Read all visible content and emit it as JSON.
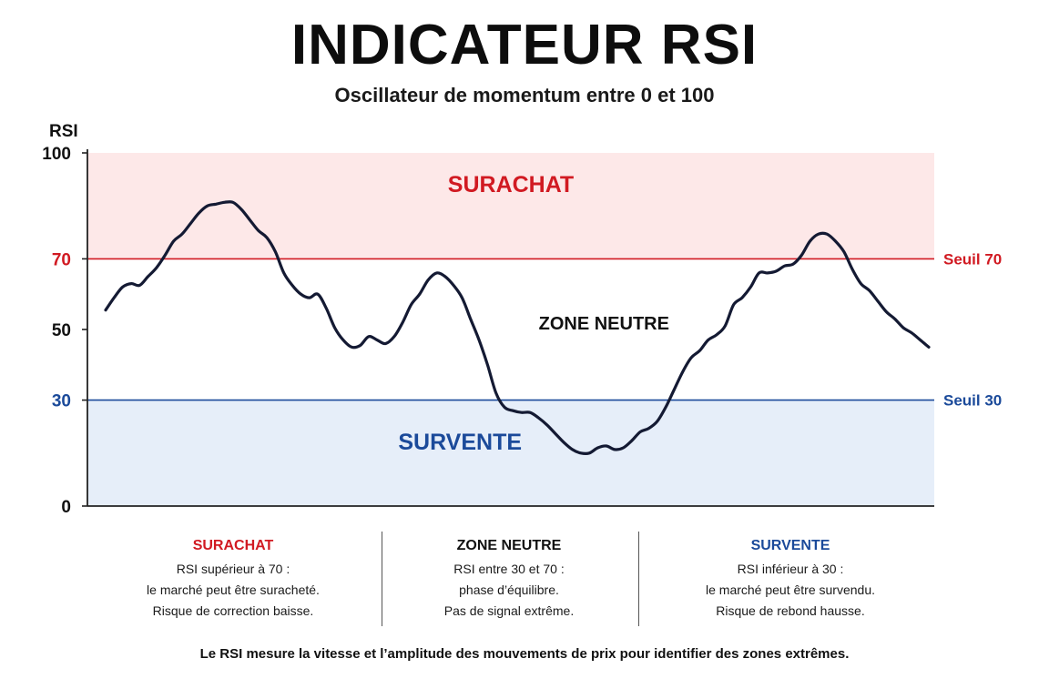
{
  "title": "INDICATEUR RSI",
  "subtitle": "Oscillateur de momentum entre 0 et 100",
  "colors": {
    "overbought": "#d11a22",
    "oversold": "#1b4a9a",
    "overbought_band": "#fde8e8",
    "oversold_band": "#e6eef9",
    "line": "#141a33"
  },
  "chart_data": {
    "type": "line",
    "ylabel": "RSI",
    "ylim": [
      0,
      100
    ],
    "y_ticks": [
      {
        "value": 100,
        "label": "100",
        "color": "#111111"
      },
      {
        "value": 70,
        "label": "70",
        "color": "#d11a22"
      },
      {
        "value": 50,
        "label": "50",
        "color": "#111111"
      },
      {
        "value": 30,
        "label": "30",
        "color": "#1b4a9a"
      },
      {
        "value": 0,
        "label": "0",
        "color": "#111111"
      }
    ],
    "thresholds": [
      {
        "value": 70,
        "label": "Seuil 70",
        "color": "#d11a22"
      },
      {
        "value": 30,
        "label": "Seuil 30",
        "color": "#1b4a9a"
      }
    ],
    "zones": [
      {
        "from": 70,
        "to": 100,
        "label": "SURACHAT",
        "color": "#d11a22",
        "fill": "#fde8e8",
        "label_value": 91,
        "label_x": 0.5
      },
      {
        "from": 30,
        "to": 70,
        "label": "ZONE NEUTRE",
        "color": "#111111",
        "fill": "none",
        "label_value": 52,
        "label_x": 0.61
      },
      {
        "from": 0,
        "to": 30,
        "label": "SURVENTE",
        "color": "#1b4a9a",
        "fill": "#e6eef9",
        "label_value": 18,
        "label_x": 0.44
      }
    ],
    "series": [
      {
        "values": [
          55.5,
          59,
          62,
          63,
          62.5,
          65,
          67.5,
          71,
          75,
          77,
          80,
          83,
          85,
          85.5,
          86,
          86,
          84,
          81,
          78,
          76,
          72,
          66,
          62.5,
          60,
          59,
          60,
          56,
          50.5,
          47,
          45,
          45.5,
          48,
          47,
          46,
          48,
          52,
          57,
          60,
          64,
          66,
          65,
          62.5,
          59,
          53,
          47,
          40,
          32,
          28,
          27,
          26.5,
          26.5,
          25,
          23,
          20.5,
          18,
          16,
          15,
          15,
          16.5,
          17,
          16,
          16.5,
          18.5,
          21,
          22,
          24,
          28,
          33,
          38,
          42,
          44,
          47,
          48.5,
          51,
          57,
          59,
          62,
          66,
          66,
          66.5,
          68,
          68.5,
          71,
          75,
          77,
          77,
          75,
          72,
          67,
          63,
          61,
          58,
          55,
          53,
          50.5,
          49,
          47,
          45
        ]
      }
    ]
  },
  "info": [
    {
      "heading": "SURACHAT",
      "color": "#d11a22",
      "lines": [
        "RSI supérieur à 70 :",
        "le marché peut être suracheté.",
        "Risque de correction baisse."
      ]
    },
    {
      "heading": "ZONE NEUTRE",
      "color": "#111111",
      "lines": [
        "RSI entre 30 et 70 :",
        "phase d’équilibre.",
        "Pas de signal extrême."
      ]
    },
    {
      "heading": "SURVENTE",
      "color": "#1b4a9a",
      "lines": [
        "RSI inférieur à 30 :",
        "le marché peut être survendu.",
        "Risque de rebond hausse."
      ]
    }
  ],
  "footer": "Le RSI mesure la vitesse et l’amplitude des mouvements de prix pour identifier des zones extrêmes."
}
